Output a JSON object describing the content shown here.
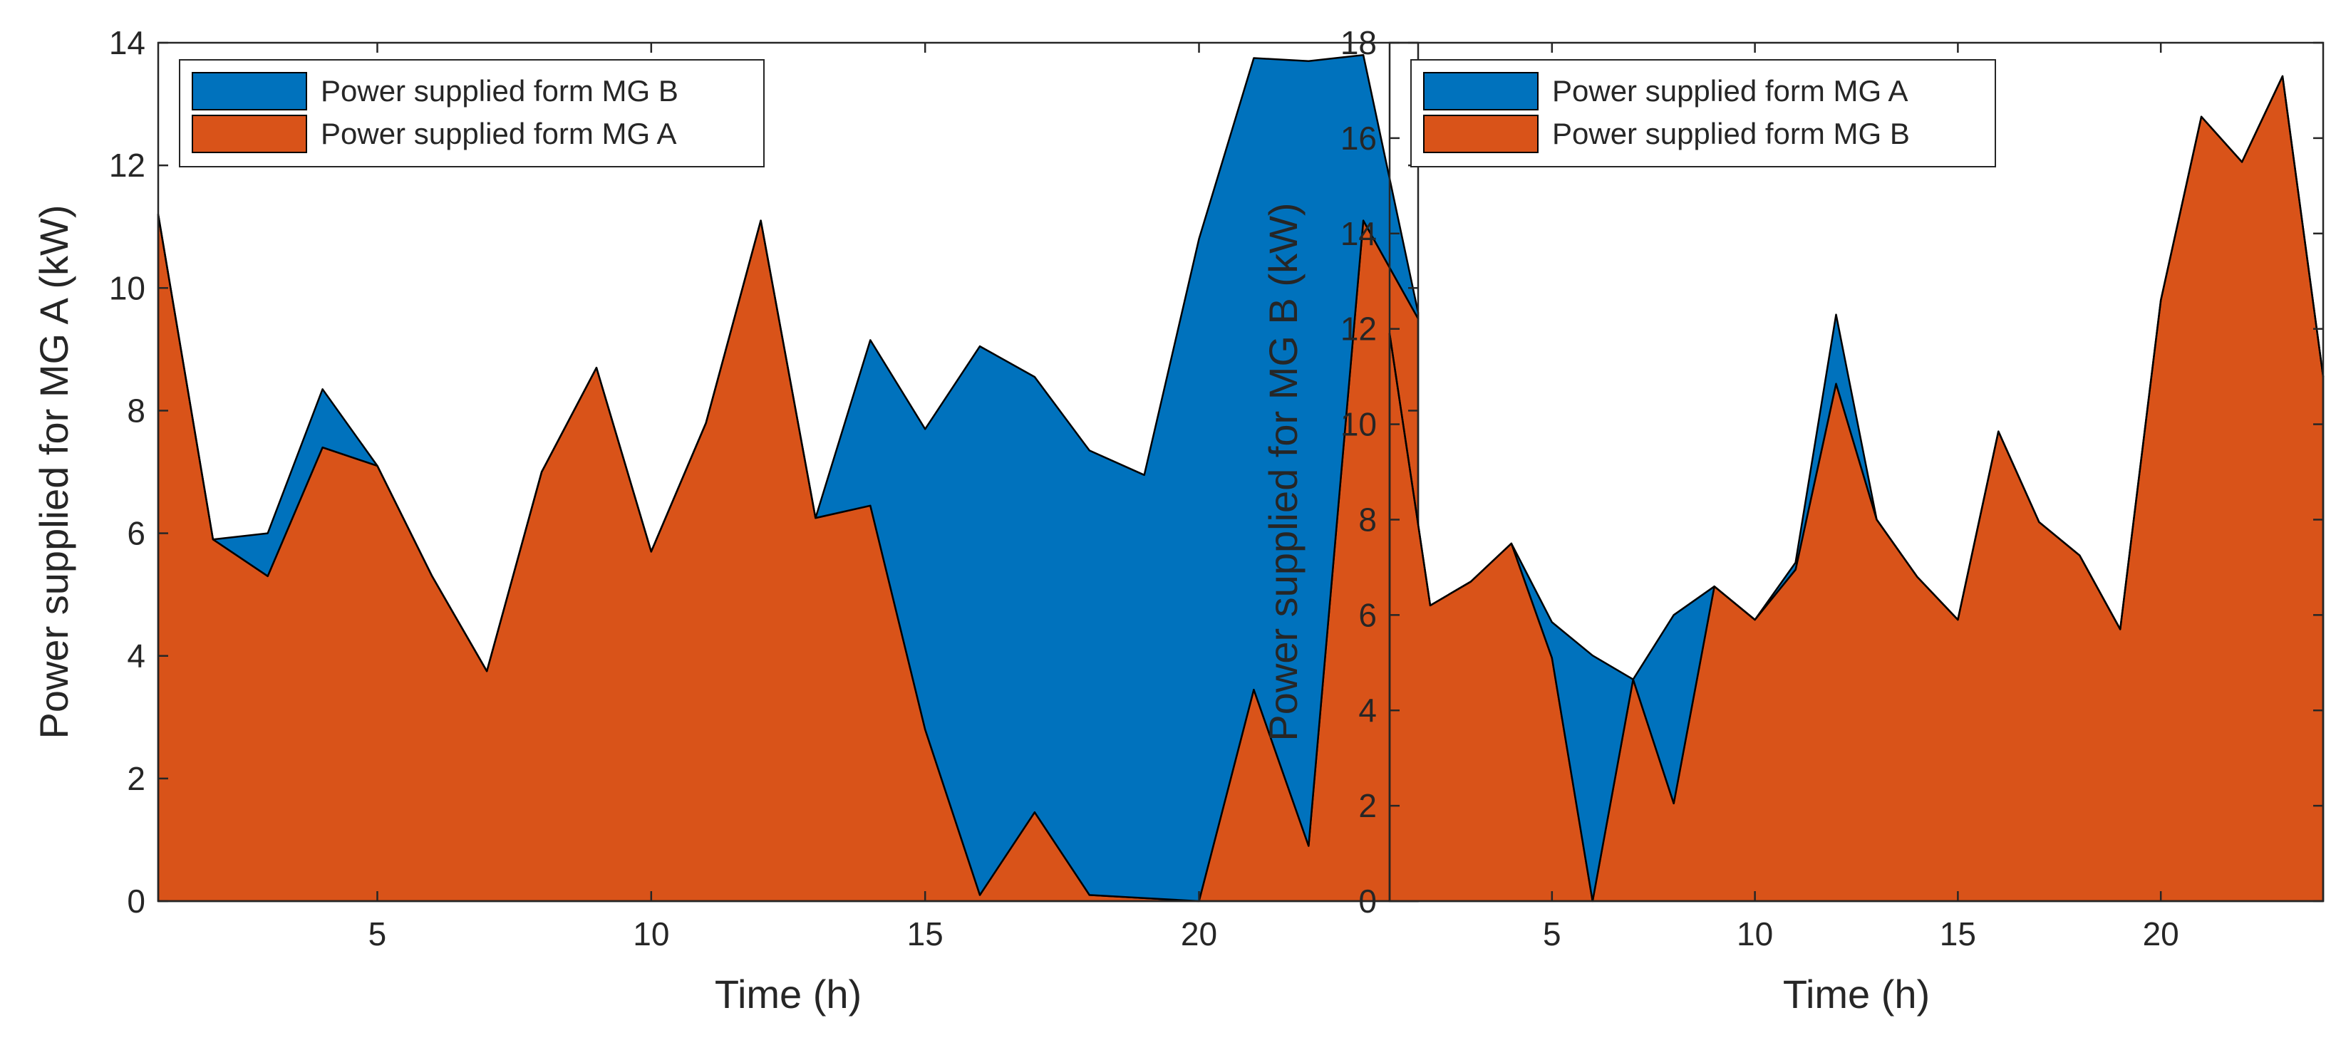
{
  "chart_data": [
    {
      "type": "area",
      "stacked": true,
      "xlabel": "Time (h)",
      "ylabel": "Power supplied for MG A (kW)",
      "xlim": [
        1,
        24
      ],
      "ylim": [
        0,
        14
      ],
      "xticks": [
        5,
        10,
        15,
        20
      ],
      "yticks": [
        0,
        2,
        4,
        6,
        8,
        10,
        12,
        14
      ],
      "legend_position": "top-left",
      "x": [
        1,
        2,
        3,
        4,
        5,
        6,
        7,
        8,
        9,
        10,
        11,
        12,
        13,
        14,
        15,
        16,
        17,
        18,
        19,
        20,
        21,
        22,
        23,
        24
      ],
      "series": [
        {
          "name": "Power supplied form MG A",
          "color": "#D95319",
          "values": [
            11.2,
            5.9,
            5.3,
            7.4,
            7.1,
            5.3,
            3.75,
            7.0,
            8.7,
            5.7,
            7.8,
            11.1,
            6.25,
            6.45,
            2.8,
            0.1,
            1.45,
            0.1,
            0.05,
            0.0,
            3.45,
            0.9,
            11.1,
            9.5
          ]
        },
        {
          "name": "Power supplied form MG B",
          "color": "#0072BD",
          "values": [
            0.0,
            0.0,
            0.7,
            0.95,
            0.0,
            0.0,
            0.0,
            0.0,
            0.0,
            0.0,
            0.0,
            0.0,
            0.0,
            2.7,
            4.9,
            8.95,
            7.1,
            7.25,
            6.9,
            10.8,
            10.3,
            12.8,
            2.7,
            0.1
          ]
        }
      ]
    },
    {
      "type": "area",
      "stacked": true,
      "xlabel": "Time (h)",
      "ylabel": "Power supplied for MG B (kW)",
      "xlim": [
        1,
        24
      ],
      "ylim": [
        0,
        18
      ],
      "xticks": [
        5,
        10,
        15,
        20
      ],
      "yticks": [
        0,
        2,
        4,
        6,
        8,
        10,
        12,
        14,
        16,
        18
      ],
      "legend_position": "top-left",
      "x": [
        1,
        2,
        3,
        4,
        5,
        6,
        7,
        8,
        9,
        10,
        11,
        12,
        13,
        14,
        15,
        16,
        17,
        18,
        19,
        20,
        21,
        22,
        23,
        24
      ],
      "series": [
        {
          "name": "Power supplied form MG B",
          "color": "#D95319",
          "values": [
            11.9,
            6.2,
            6.7,
            7.5,
            5.1,
            0.0,
            4.65,
            2.05,
            6.6,
            5.9,
            6.95,
            10.85,
            8.0,
            6.8,
            5.9,
            9.85,
            7.95,
            7.25,
            5.7,
            12.6,
            16.45,
            15.5,
            17.3,
            11.0
          ]
        },
        {
          "name": "Power supplied form MG A",
          "color": "#0072BD",
          "values": [
            0.0,
            0.0,
            0.0,
            0.0,
            0.75,
            5.15,
            0.0,
            3.95,
            0.0,
            0.0,
            0.15,
            1.45,
            0.0,
            0.0,
            0.0,
            0.0,
            0.0,
            0.0,
            0.0,
            0.0,
            0.0,
            0.0,
            0.0,
            0.0
          ]
        }
      ]
    }
  ]
}
